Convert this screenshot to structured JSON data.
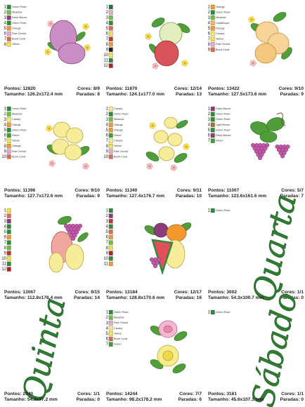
{
  "cells": [
    {
      "threads": [
        {
          "n": 1,
          "name": "Green Pearl",
          "color": "#2e8b3a"
        },
        {
          "n": 2,
          "name": "Meadow",
          "color": "#6cbf3f"
        },
        {
          "n": 3,
          "name": "Deep Mauve",
          "color": "#8a3d7a"
        },
        {
          "n": 4,
          "name": "Green Pearl",
          "color": "#2e8b3a"
        },
        {
          "n": 5,
          "name": "Orange",
          "color": "#f29a2e"
        },
        {
          "n": 6,
          "name": "Pale Orchid",
          "color": "#e8a7d0"
        },
        {
          "n": 7,
          "name": "Burnt Coral",
          "color": "#e06a4e"
        },
        {
          "n": 8,
          "name": "Yellow",
          "color": "#f5e14a"
        }
      ],
      "pontos": "Pontos: 12820",
      "cores": "Cores: 8/9",
      "tamanho": "Tamanho: 126.2x172.4 mm",
      "paradas": "Paradas: 8"
    },
    {
      "threads": [
        {
          "n": 1,
          "color": "#1f7a33"
        },
        {
          "n": 2,
          "color": "#e8a7d0"
        },
        {
          "n": 3,
          "color": "#6cbf3f"
        },
        {
          "n": 4,
          "color": "#2e8b3a"
        },
        {
          "n": 5,
          "color": "#e06a4e"
        },
        {
          "n": 6,
          "color": "#f5e14a"
        },
        {
          "n": 7,
          "color": "#c0392b"
        },
        {
          "n": 8,
          "color": "#f29a2e"
        },
        {
          "n": 9,
          "color": "#222222"
        },
        {
          "n": 10,
          "color": "#f5e14a"
        },
        {
          "n": 11,
          "color": "#2e8b3a"
        },
        {
          "n": 12,
          "color": "#b22222"
        }
      ],
      "pontos": "Pontos: 11870",
      "cores": "Cores: 12/14",
      "tamanho": "Tamanho: 124.1x177.0 mm",
      "paradas": "Paradas: 13"
    },
    {
      "threads": [
        {
          "n": 1,
          "name": "Orange",
          "color": "#f29a2e"
        },
        {
          "n": 2,
          "name": "Green Pearl",
          "color": "#2e8b3a"
        },
        {
          "n": 3,
          "name": "Meadow",
          "color": "#6cbf3f"
        },
        {
          "n": 4,
          "name": "Cantaloupe",
          "color": "#f6b26b"
        },
        {
          "n": 5,
          "name": "Orange",
          "color": "#f29a2e"
        },
        {
          "n": 6,
          "name": "Canary",
          "color": "#f7e97a"
        },
        {
          "n": 7,
          "name": "Yellow",
          "color": "#f5e14a"
        },
        {
          "n": 8,
          "name": "Pale Orchid",
          "color": "#e8a7d0"
        },
        {
          "n": 9,
          "name": "Burnt Coral",
          "color": "#e06a4e"
        }
      ],
      "pontos": "Pontos: 13422",
      "cores": "Cores: 9/10",
      "tamanho": "Tamanho: 127.5x173.6 mm",
      "paradas": "Paradas: 9"
    },
    {
      "threads": [
        {
          "n": 1,
          "name": "Green Pearl",
          "color": "#2e8b3a"
        },
        {
          "n": 2,
          "name": "Meadow",
          "color": "#6cbf3f"
        },
        {
          "n": 3,
          "name": "Canary",
          "color": "#f7e97a"
        },
        {
          "n": 4,
          "name": "Orange",
          "color": "#f29a2e"
        },
        {
          "n": 5,
          "name": "Green Pearl",
          "color": "#2e8b3a"
        },
        {
          "n": 6,
          "name": "Green",
          "color": "#3a9d3a"
        },
        {
          "n": 7,
          "name": "Yellow",
          "color": "#f5e14a"
        },
        {
          "n": 8,
          "name": "Orange",
          "color": "#f29a2e"
        },
        {
          "n": 9,
          "name": "Pale Orchid",
          "color": "#e8a7d0"
        },
        {
          "n": 10,
          "name": "Burnt Coral",
          "color": "#e06a4e"
        }
      ],
      "pontos": "Pontos: 11396",
      "cores": "Cores: 9/10",
      "tamanho": "Tamanho: 127.7x172.6 mm",
      "paradas": "Paradas: 9"
    },
    {
      "threads": [
        {
          "n": 1,
          "name": "Canary",
          "color": "#f7e97a"
        },
        {
          "n": 2,
          "name": "Green Pearl",
          "color": "#2e8b3a"
        },
        {
          "n": 3,
          "name": "Meadow",
          "color": "#6cbf3f"
        },
        {
          "n": 4,
          "name": "Orange",
          "color": "#f29a2e"
        },
        {
          "n": 5,
          "name": "Orange",
          "color": "#f29a2e"
        },
        {
          "n": 6,
          "name": "Green",
          "color": "#3a9d3a"
        },
        {
          "n": 7,
          "name": "Canary",
          "color": "#f7e97a"
        },
        {
          "n": 8,
          "name": "Yellow",
          "color": "#f5e14a"
        },
        {
          "n": 9,
          "name": "Pale Orchid",
          "color": "#e8a7d0"
        },
        {
          "n": 10,
          "name": "Burnt Coral",
          "color": "#e06a4e"
        }
      ],
      "pontos": "Pontos: 11340",
      "cores": "Cores: 9/11",
      "tamanho": "Tamanho: 127.4x176.7 mm",
      "paradas": "Paradas: 10"
    },
    {
      "threads": [
        {
          "n": 1,
          "name": "Deep Mauve",
          "color": "#8a3d7a"
        },
        {
          "n": 2,
          "name": "Green Pearl",
          "color": "#2e8b3a"
        },
        {
          "n": 3,
          "name": "Green Pearl",
          "color": "#2e8b3a"
        },
        {
          "n": 4,
          "name": "Light Brown",
          "color": "#a0703a"
        },
        {
          "n": 5,
          "name": "Green Pearl",
          "color": "#2e8b3a"
        },
        {
          "n": 6,
          "name": "Deep Mauve",
          "color": "#8a3d7a"
        },
        {
          "n": 7,
          "name": "Green",
          "color": "#3a9d3a"
        }
      ],
      "pontos": "Pontos: 11007",
      "cores": "Cores: 5/7",
      "tamanho": "Tamanho: 123.6x161.6 mm",
      "paradas": "Paradas: 7"
    },
    {
      "threads": [
        {
          "n": 1,
          "color": "#f5e14a"
        },
        {
          "n": 2,
          "color": "#e06a4e"
        },
        {
          "n": 3,
          "color": "#8a3d7a"
        },
        {
          "n": 4,
          "color": "#2e8b3a"
        },
        {
          "n": 5,
          "color": "#2e8b3a"
        },
        {
          "n": 6,
          "color": "#f29a2e"
        },
        {
          "n": 7,
          "color": "#2e8b3a"
        },
        {
          "n": 8,
          "color": "#6cbf3f"
        },
        {
          "n": 9,
          "color": "#c0392b"
        },
        {
          "n": 10,
          "color": "#f5e14a"
        },
        {
          "n": 11,
          "color": "#2e8b3a"
        },
        {
          "n": 12,
          "color": "#b22222"
        }
      ],
      "pontos": "Pontos: 13067",
      "cores": "Cores: 9/15",
      "tamanho": "Tamanho: 112.8x178.4 mm",
      "paradas": "Paradas: 14"
    },
    {
      "threads": [
        {
          "n": 1,
          "color": "#2e8b3a"
        },
        {
          "n": 2,
          "color": "#8a3d7a"
        },
        {
          "n": 3,
          "color": "#c0392b"
        },
        {
          "n": 4,
          "color": "#2e8b3a"
        },
        {
          "n": 5,
          "color": "#e06a4e"
        },
        {
          "n": 6,
          "color": "#f29a2e"
        },
        {
          "n": 7,
          "color": "#6cbf3f"
        },
        {
          "n": 8,
          "color": "#f5e14a"
        },
        {
          "n": 9,
          "color": "#b22222"
        },
        {
          "n": 10,
          "color": "#2e8b3a"
        },
        {
          "n": 11,
          "color": "#f29a2e"
        }
      ],
      "pontos": "Pontos: 13184",
      "cores": "Cores: 12/17",
      "tamanho": "Tamanho: 128.8x170.6 mm",
      "paradas": "Paradas: 16"
    },
    {
      "threads": [
        {
          "n": 1,
          "name": "Green Pearl",
          "color": "#2e8b3a"
        }
      ],
      "word": "Quarta",
      "pontos": "Pontos: 3002",
      "cores": "Cores: 1/1",
      "tamanho": "Tamanho: 54.3x100.7 mm",
      "paradas": "Paradas: 0"
    },
    {
      "threads": [],
      "word": "Quinta",
      "pontos": "Pontos: 2940",
      "cores": "Cores: 1/1",
      "tamanho": "Tamanho: 54.3x97.2 mm",
      "paradas": "Paradas: 0"
    },
    {
      "threads": [
        {
          "n": 1,
          "name": "Green Pearl",
          "color": "#2e8b3a"
        },
        {
          "n": 2,
          "name": "Meadow",
          "color": "#6cbf3f"
        },
        {
          "n": 3,
          "name": "Pale Orchid",
          "color": "#e8a7d0"
        },
        {
          "n": 4,
          "name": "Canary",
          "color": "#f7e97a"
        },
        {
          "n": 5,
          "name": "Yellow",
          "color": "#f5e14a"
        },
        {
          "n": 6,
          "name": "Burnt Coral",
          "color": "#e06a4e"
        },
        {
          "n": 7,
          "name": "Green",
          "color": "#3a9d3a"
        }
      ],
      "pontos": "Pontos: 14244",
      "cores": "Cores: 7/7",
      "tamanho": "Tamanho: 98.2x178.2 mm",
      "paradas": "Paradas: 6"
    },
    {
      "threads": [
        {
          "n": 1,
          "name": "Green Pearl",
          "color": "#2e8b3a"
        }
      ],
      "word": "Sábado",
      "pontos": "Pontos: 3161",
      "cores": "Cores: 1/1",
      "tamanho": "Tamanho: 45.6x107.1 mm",
      "paradas": "Paradas: 0"
    }
  ]
}
